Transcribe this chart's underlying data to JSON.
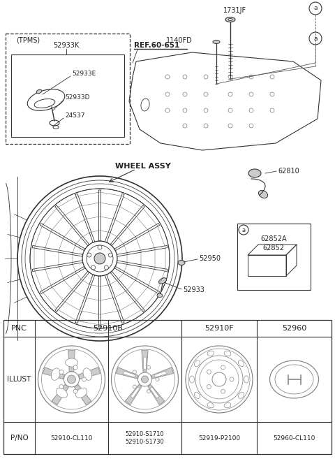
{
  "bg_color": "#ffffff",
  "line_color": "#333333",
  "gray": "#888888",
  "light_gray": "#cccccc",
  "tpms_parts": [
    "52933K",
    "52933E",
    "52933D",
    "24537"
  ],
  "ref_label": "REF.60-651",
  "top_parts": [
    "1731JF",
    "1140FD"
  ],
  "mid_parts": [
    "62810",
    "62852A",
    "62852",
    "52950",
    "52933"
  ],
  "wheel_label": "WHEEL ASSY",
  "table_headers": [
    "PNC",
    "52910B",
    "52910F",
    "52960"
  ],
  "table_pno": [
    "52910-CL110",
    "52910-S1710\n52910-S1730",
    "52919-P2100",
    "52960-CL110"
  ]
}
